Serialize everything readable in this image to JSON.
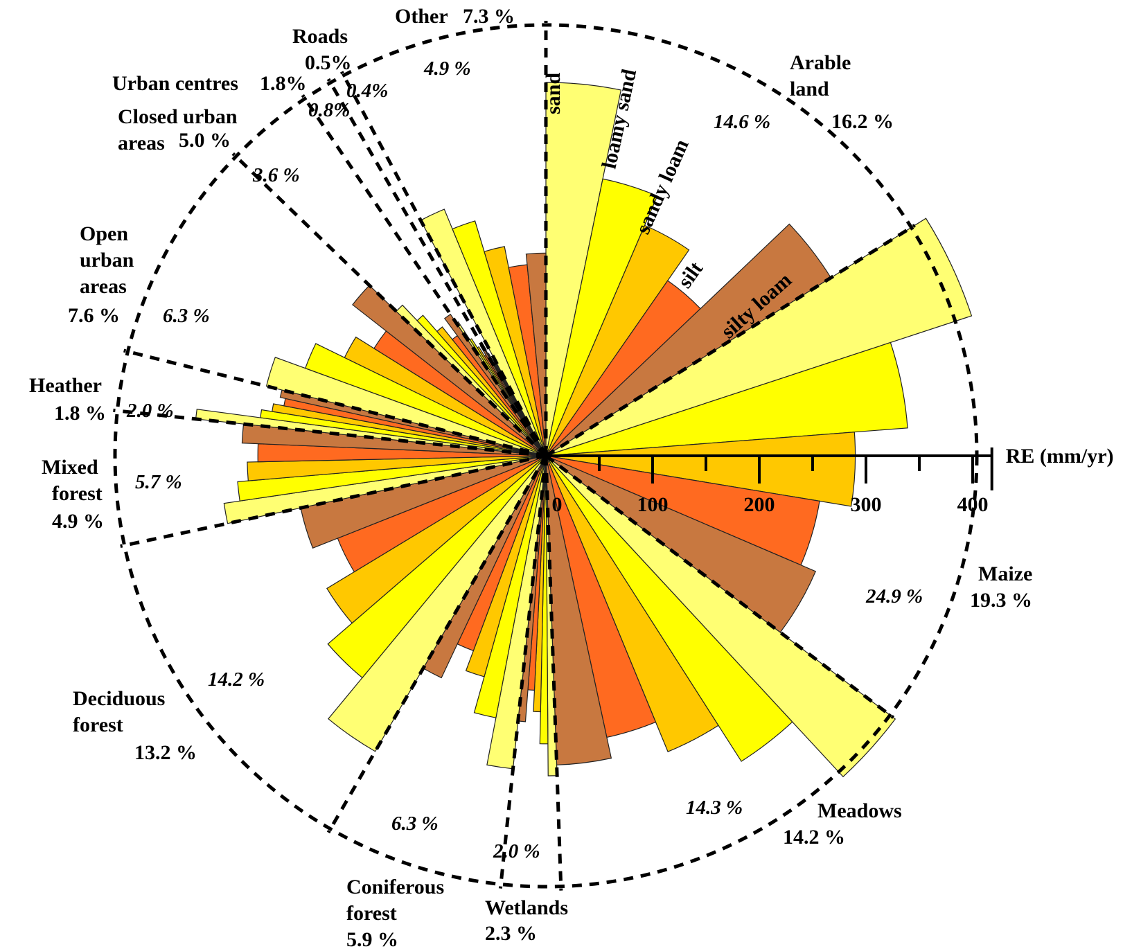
{
  "chart_data": {
    "type": "polar-bar",
    "axis_label": "RE (mm/yr)",
    "r_ticks": [
      0,
      100,
      200,
      300,
      400
    ],
    "r_max": 400,
    "soil_types": [
      {
        "name": "sand",
        "color": "#FFFF73"
      },
      {
        "name": "loamy sand",
        "color": "#FFFF00"
      },
      {
        "name": "sandy loam",
        "color": "#FFC800"
      },
      {
        "name": "silt",
        "color": "#FF6A20"
      },
      {
        "name": "silty loam",
        "color": "#C87840"
      }
    ],
    "land_uses": [
      {
        "name": "Arable land",
        "area_pct": "16.2 %",
        "sector_pct": "14.6 %",
        "values": [
          350,
          265,
          235,
          200,
          315
        ]
      },
      {
        "name": "Maize",
        "area_pct": "19.3 %",
        "sector_pct": "24.9 %",
        "values": [
          420,
          340,
          290,
          260,
          275
        ]
      },
      {
        "name": "Meadows",
        "area_pct": "14.2 %",
        "sector_pct": "14.3 %",
        "values": [
          410,
          340,
          300,
          270,
          290
        ]
      },
      {
        "name": "Wetlands",
        "area_pct": "2.3 %",
        "sector_pct": "2.0 %",
        "values": [
          300,
          270,
          240,
          220,
          250
        ]
      },
      {
        "name": "Coniferous forest",
        "area_pct": "5.9 %",
        "sector_pct": "6.3 %",
        "values": [
          295,
          250,
          215,
          195,
          230
        ]
      },
      {
        "name": "Deciduous forest",
        "area_pct": "13.2 %",
        "sector_pct": "14.2 %",
        "values": [
          320,
          270,
          240,
          210,
          235
        ]
      },
      {
        "name": "Mixed forest",
        "area_pct": "4.9 %",
        "sector_pct": "5.7 %",
        "values": [
          305,
          290,
          280,
          270,
          285
        ]
      },
      {
        "name": "Heather",
        "area_pct": "1.8 %",
        "sector_pct": "2.0 %",
        "values": [
          330,
          270,
          260,
          250,
          255
        ]
      },
      {
        "name": "Open urban areas",
        "area_pct": "7.6 %",
        "sector_pct": "6.3 %",
        "values": [
          270,
          240,
          210,
          190,
          230
        ]
      },
      {
        "name": "Closed urban areas",
        "area_pct": "5.0 %",
        "sector_pct": "3.6 %",
        "values": [
          195,
          175,
          155,
          140,
          160
        ]
      },
      {
        "name": "Urban centres",
        "area_pct": "1.8%",
        "sector_pct": "0.8%",
        "values": [
          150,
          130,
          120,
          110,
          120
        ]
      },
      {
        "name": "Roads",
        "area_pct": "0.5%",
        "sector_pct": "0.4%",
        "values": [
          120,
          110,
          100,
          90,
          100
        ]
      },
      {
        "name": "Other",
        "area_pct": "7.3 %",
        "sector_pct": "4.9 %",
        "values": [
          250,
          230,
          200,
          180,
          190
        ]
      }
    ]
  }
}
